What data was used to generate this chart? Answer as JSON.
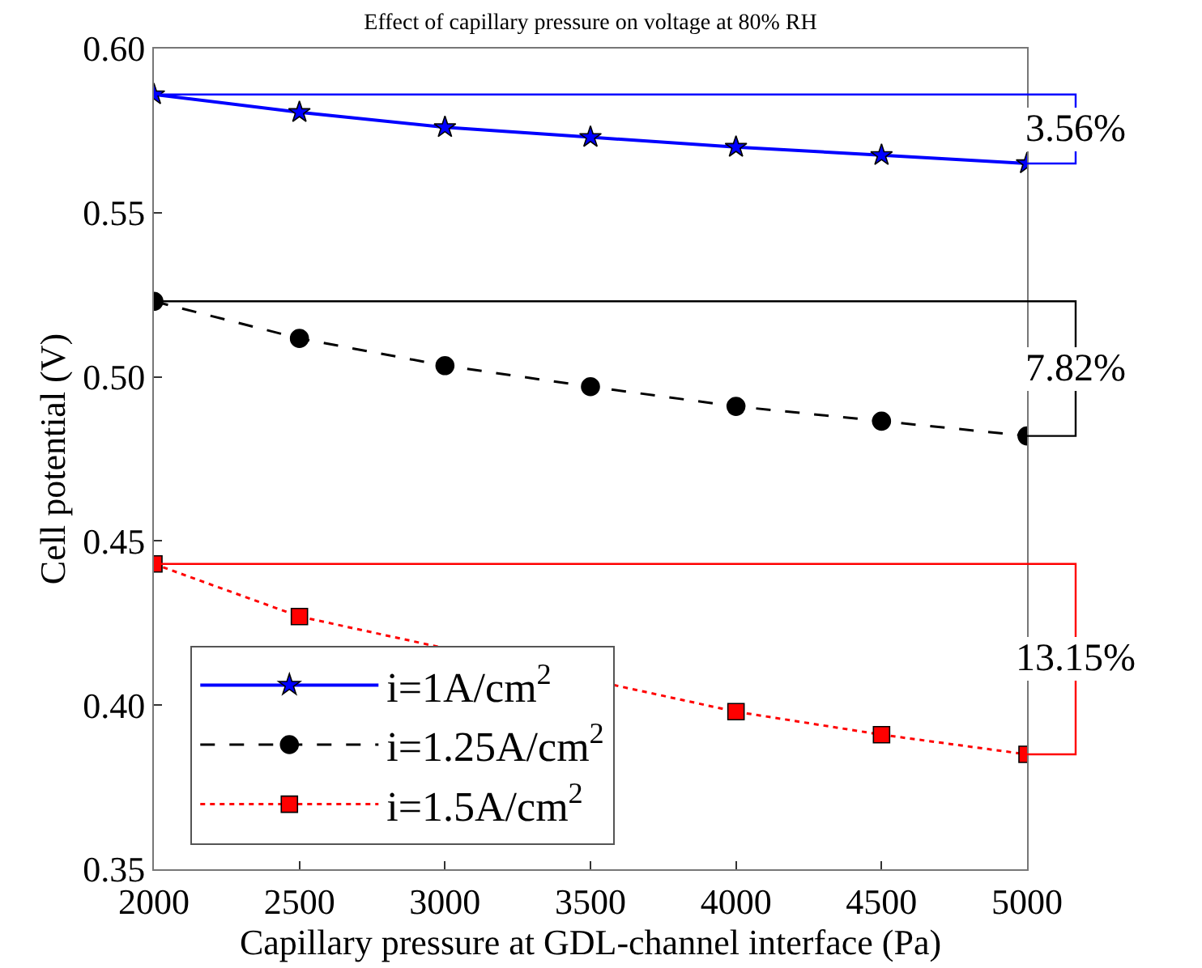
{
  "chart_data": {
    "type": "line",
    "title": "Effect of capillary pressure on voltage at 80% RH",
    "xlabel": "Capillary pressure at GDL-channel interface (Pa)",
    "ylabel": "Cell potential (V)",
    "x": [
      2000,
      2500,
      3000,
      3500,
      4000,
      4500,
      5000
    ],
    "series": [
      {
        "name": "i=1A/cm$^{2}$",
        "color": "#0000ff",
        "marker": "star",
        "line_style": "solid",
        "values": [
          0.586,
          0.5806,
          0.576,
          0.573,
          0.57,
          0.5675,
          0.565
        ]
      },
      {
        "name": "i=1.25A/cm$^{2}$",
        "color": "#000000",
        "marker": "circle",
        "line_style": "dashed",
        "values": [
          0.523,
          0.5117,
          0.5034,
          0.497,
          0.491,
          0.4865,
          0.482
        ]
      },
      {
        "name": "i=1.5A/cm$^{2}$",
        "color": "#ff0000",
        "marker": "square",
        "line_style": "dotted",
        "values": [
          0.443,
          0.427,
          null,
          null,
          0.398,
          0.391,
          0.385
        ]
      }
    ],
    "ref_lines": [
      {
        "axis": "y",
        "value": 0.586,
        "color": "#0000ff"
      },
      {
        "axis": "y",
        "value": 0.523,
        "color": "#000000"
      },
      {
        "axis": "y",
        "value": 0.443,
        "color": "#ff0000"
      }
    ],
    "annotations": [
      "3.56%",
      "7.82%",
      "13.15%"
    ],
    "xlim": [
      2000,
      5000
    ],
    "xticks": [
      2000,
      2500,
      3000,
      3500,
      4000,
      4500,
      5000
    ],
    "ylim": [
      0.35,
      0.6
    ],
    "yticks": [
      {
        "value": 0.35,
        "label": "0.35"
      },
      {
        "value": 0.4,
        "label": "0.40"
      },
      {
        "value": 0.45,
        "label": "0.45"
      },
      {
        "value": 0.5,
        "label": "0.50"
      },
      {
        "value": 0.55,
        "label": "0.55"
      },
      {
        "value": 0.6,
        "label": "0.60"
      }
    ],
    "legend": "bottom left"
  }
}
